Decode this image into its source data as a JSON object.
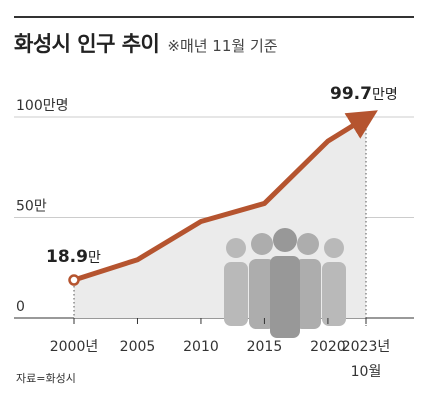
{
  "header": {
    "title": "화성시 인구 추이",
    "subtitle": "※매년 11월 기준"
  },
  "source": "자료=화성시",
  "colors": {
    "line": "#b5542f",
    "area": "#ebebeb",
    "grid": "#cccccc",
    "people": "#a3a3a3"
  },
  "chart_data": {
    "type": "area",
    "title": "화성시 인구 추이",
    "subtitle": "※매년 11월 기준",
    "x": [
      2000,
      2005,
      2010,
      2015,
      2020,
      2023
    ],
    "x_tick_labels": [
      "2000년",
      "2005",
      "2010",
      "2015",
      "2020",
      "2023년"
    ],
    "x_tick_sublabel": "10월",
    "values": [
      18.9,
      29,
      48,
      57,
      88,
      99.7
    ],
    "ylim": [
      0,
      100
    ],
    "y_ticks": [
      0,
      50,
      100
    ],
    "y_tick_labels": [
      "0",
      "50만",
      "100만명"
    ],
    "grid": true,
    "annotations": [
      {
        "x": 2000,
        "value": "18.9",
        "unit": "만"
      },
      {
        "x": 2023,
        "value": "99.7",
        "unit": "만명"
      }
    ]
  }
}
